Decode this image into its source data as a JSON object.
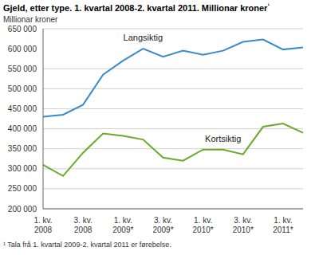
{
  "chart_data": {
    "type": "line",
    "title": "Gjeld, etter type. 1. kvartal 2008-2. kvartal 2011. Millionar kroner¹",
    "y_label": "Millionar kroner",
    "footnote": "¹ Tala frå 1. kvartal 2009-2. kvartal 2011 er førebelse.",
    "categories": [
      "1. kv. 2008",
      null,
      "3. kv. 2008",
      null,
      "1. kv. 2009*",
      null,
      "3. kv. 2009*",
      null,
      "1. kv. 2010*",
      null,
      "3. kv. 2010*",
      null,
      "1. kv. 2011*",
      null
    ],
    "series": [
      {
        "name": "Langsiktig",
        "color": "#3a8cc8",
        "values": [
          430000,
          435000,
          460000,
          535000,
          570000,
          600000,
          580000,
          595000,
          585000,
          595000,
          617000,
          623000,
          598000,
          603000
        ]
      },
      {
        "name": "Kortsiktig",
        "color": "#6aaa2a",
        "values": [
          310000,
          282000,
          340000,
          388000,
          382000,
          373000,
          328000,
          320000,
          348000,
          348000,
          336000,
          405000,
          413000,
          390000
        ]
      }
    ],
    "ylim": [
      200000,
      650000
    ],
    "yticks": [
      {
        "value": 200000,
        "label": "200 000"
      },
      {
        "value": 250000,
        "label": "250 000"
      },
      {
        "value": 300000,
        "label": "300 000"
      },
      {
        "value": 350000,
        "label": "350 000"
      },
      {
        "value": 400000,
        "label": "400 000"
      },
      {
        "value": 450000,
        "label": "450 000"
      },
      {
        "value": 500000,
        "label": "500 000"
      },
      {
        "value": 550000,
        "label": "550 000"
      },
      {
        "value": 600000,
        "label": "600 000"
      },
      {
        "value": 650000,
        "label": "650 000"
      }
    ],
    "grid": true
  }
}
